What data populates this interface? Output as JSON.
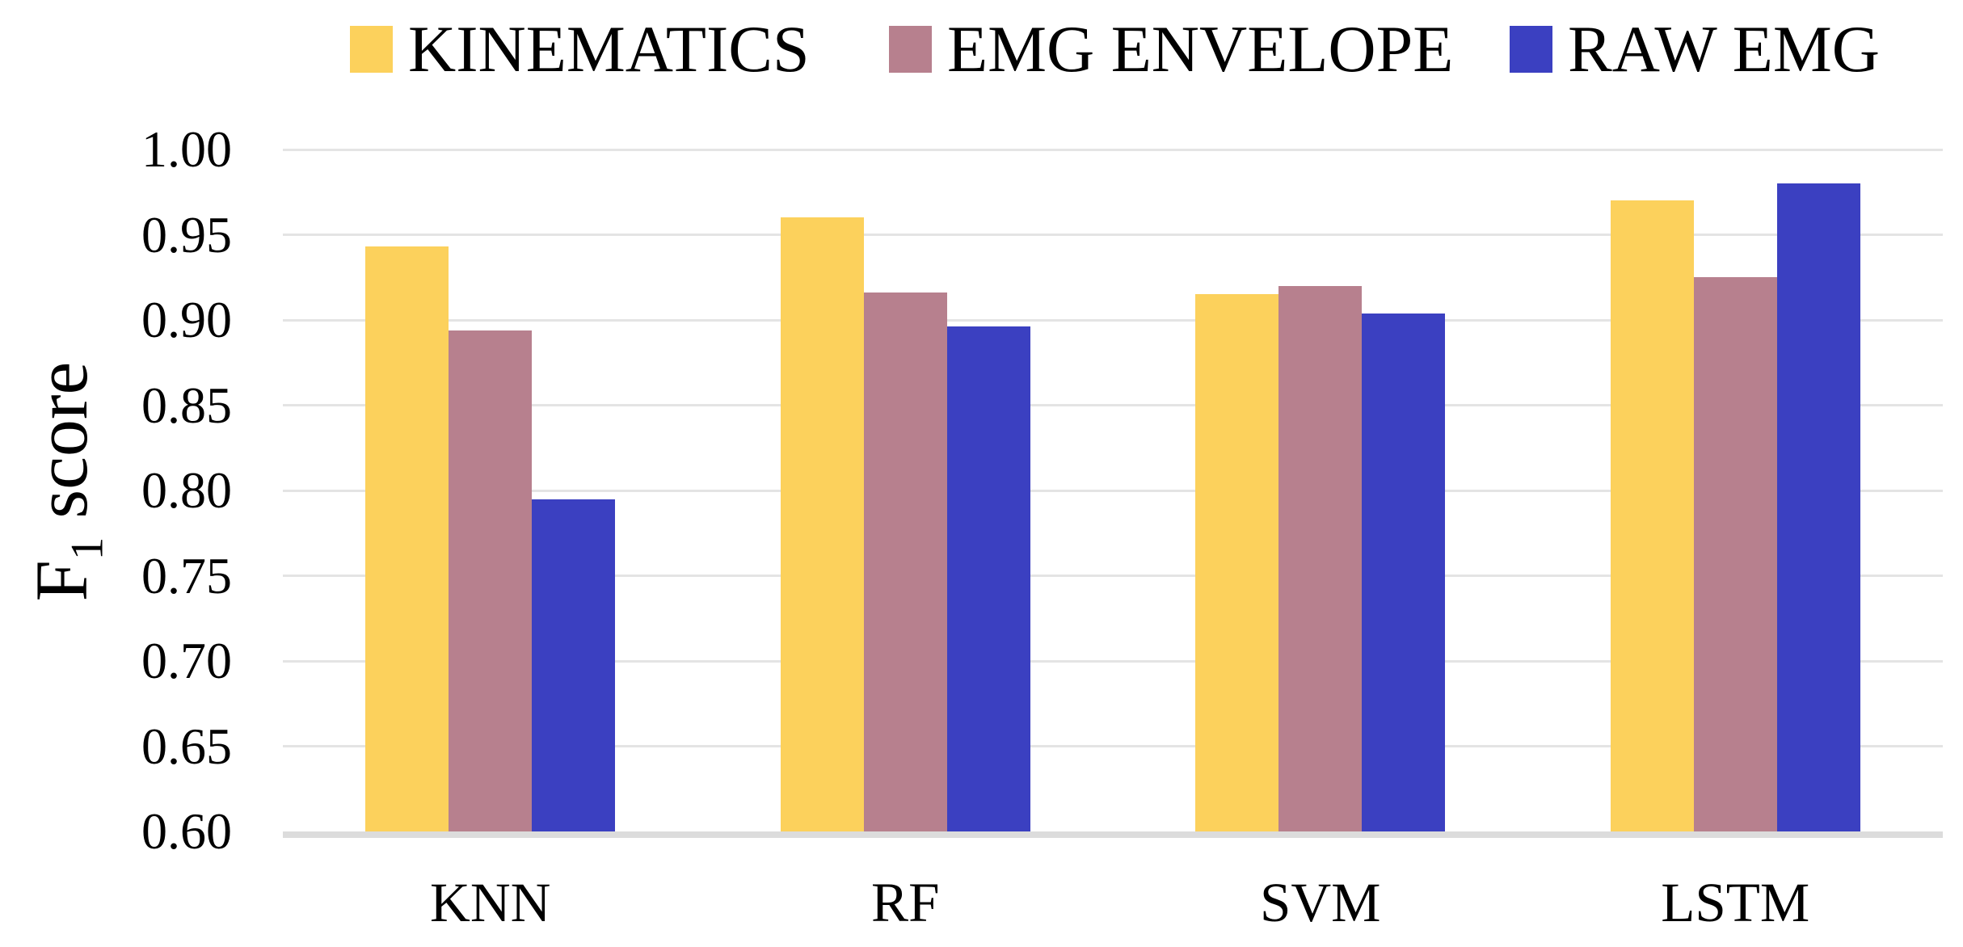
{
  "chart_data": {
    "type": "bar",
    "title": "",
    "xlabel": "",
    "ylabel": "F1 score",
    "ylabel_parts": {
      "main": "F",
      "sub": "1",
      "rest": " score"
    },
    "categories": [
      "KNN",
      "RF",
      "SVM",
      "LSTM"
    ],
    "series": [
      {
        "name": "KINEMATICS",
        "color": "#FCD15C",
        "values": [
          0.943,
          0.96,
          0.915,
          0.97
        ]
      },
      {
        "name": "EMG ENVELOPE",
        "color": "#B7808E",
        "values": [
          0.894,
          0.916,
          0.92,
          0.925
        ]
      },
      {
        "name": "RAW EMG",
        "color": "#3B40C1",
        "values": [
          0.795,
          0.896,
          0.904,
          0.98
        ]
      }
    ],
    "ylim": [
      0.6,
      1.0
    ],
    "ytick_step": 0.05,
    "yticks": [
      "1.00",
      "0.95",
      "0.90",
      "0.85",
      "0.80",
      "0.75",
      "0.70",
      "0.65",
      "0.60"
    ],
    "grid": "horizontal",
    "legend_position": "top",
    "colors": {
      "gridline": "#E4E4E4",
      "baseline": "#DCDCDC",
      "text": "#000000",
      "background": "#FFFFFF"
    }
  }
}
